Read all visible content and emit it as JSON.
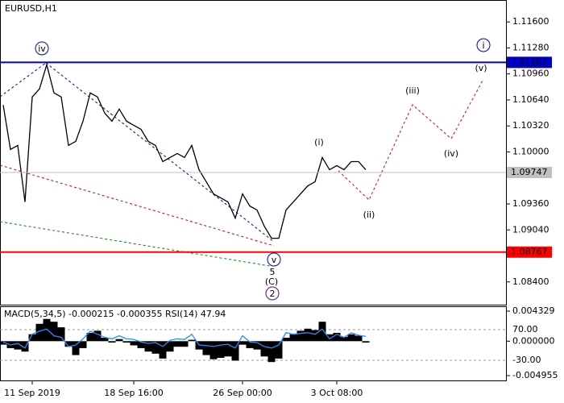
{
  "chart_data": {
    "type": "line",
    "title": "EURUSD,H1",
    "categories": [
      null,
      null,
      null,
      null,
      "11 Sep 2019",
      null,
      null,
      null,
      null,
      null,
      null,
      null,
      null,
      null,
      null,
      null,
      null,
      null,
      "18 Sep 16:00",
      null,
      null,
      null,
      null,
      null,
      null,
      null,
      null,
      null,
      null,
      null,
      null,
      null,
      null,
      "26 Sep 00:00",
      null,
      null,
      null,
      null,
      null,
      null,
      null,
      null,
      null,
      null,
      null,
      null,
      "3 Oct 08:00",
      null,
      null,
      null,
      null,
      null,
      null,
      null,
      null,
      null,
      null,
      null,
      null,
      null,
      null,
      null,
      null,
      null,
      null,
      null,
      null,
      null,
      null,
      null
    ],
    "series": [
      {
        "color": "#000000",
        "values": [
          1.10576,
          1.1003,
          1.1008,
          1.09384,
          1.10676,
          1.10775,
          1.11073,
          1.10726,
          1.10676,
          1.1008,
          1.10129,
          1.10378,
          1.10726,
          1.10676,
          1.10477,
          1.10378,
          1.10527,
          1.10378,
          1.10328,
          1.10278,
          1.10129,
          1.1008,
          1.09881,
          1.09931,
          1.0998,
          1.09931,
          1.1008,
          1.09781,
          1.09632,
          1.09483,
          1.09434,
          1.09384,
          1.09185,
          1.09483,
          1.09334,
          1.09285,
          1.09086,
          1.08937,
          1.08937,
          1.09285,
          1.09384,
          1.09483,
          1.09583,
          1.09632,
          1.09931,
          1.09781,
          1.09831,
          1.09781,
          1.09881,
          1.09881,
          1.09781,
          null,
          null,
          null,
          null,
          null,
          null,
          null,
          null,
          null,
          null,
          null,
          null,
          null,
          null,
          null,
          null,
          null,
          null,
          null
        ]
      }
    ],
    "ylim": [
      1.0812,
      1.1182
    ],
    "yticks": [
      {
        "value": 1.116,
        "label": "1.11600"
      },
      {
        "value": 1.1128,
        "label": "1.11280"
      },
      {
        "value": 1.1096,
        "label": "1.10960"
      },
      {
        "value": 1.1064,
        "label": "1.10640"
      },
      {
        "value": 1.1032,
        "label": "1.10320"
      },
      {
        "value": 1.1,
        "label": "1.10000"
      },
      {
        "value": 1.0936,
        "label": "1.09360"
      },
      {
        "value": 1.0904,
        "label": "1.09040"
      },
      {
        "value": 1.084,
        "label": "1.08400"
      }
    ],
    "levels": [
      {
        "value": 1.11102,
        "color": "#0000cc"
      },
      {
        "value": 1.09747,
        "color": "#c0c0c0"
      },
      {
        "value": 1.08767,
        "color": "#ff0000"
      }
    ],
    "annotations": [
      {
        "text": "iv",
        "color": "#0000cc",
        "circled": true
      },
      {
        "text": "i",
        "color": "#0000cc",
        "circled": true
      },
      {
        "text": "(i)",
        "color": "#dd0000",
        "circled": false
      },
      {
        "text": "(ii)",
        "color": "#dd0000",
        "circled": false
      },
      {
        "text": "(iii)",
        "color": "#dd0000",
        "circled": false
      },
      {
        "text": "(iv)",
        "color": "#dd0000",
        "circled": false
      },
      {
        "text": "(v)",
        "color": "#dd0000",
        "circled": false
      },
      {
        "text": "v",
        "color": "#0000cc",
        "circled": true
      },
      {
        "text": "5",
        "color": "#dd0000",
        "circled": false
      },
      {
        "text": "(C)",
        "color": "#008800",
        "circled": false
      },
      {
        "text": "2",
        "color": "#660099",
        "circled": true
      }
    ],
    "indicator": {
      "title": "MACD(5,34,5) -0.000215 -0.000355 RSI(14) 47.94",
      "ylim": [
        -0.004955,
        0.004329
      ],
      "yticks": [
        {
          "value": 0.004329,
          "label": "0.004329"
        },
        {
          "value": 0,
          "label": "0.000000"
        },
        {
          "value": -0.004955,
          "label": "-0.004955"
        }
      ],
      "y2lim": [
        -80,
        130.5
      ],
      "y2ticks": [
        {
          "value": 70,
          "label": "70.00"
        },
        {
          "value": -30,
          "label": "-30.00"
        }
      ],
      "series": [
        {
          "type": "bar",
          "color": "#000000",
          "values": [
            -0.0005,
            -0.001,
            -0.0012,
            -0.0015,
            0.001,
            0.0025,
            0.0032,
            0.0028,
            0.002,
            -0.0008,
            -0.002,
            -0.001,
            0.0012,
            0.0015,
            0.0005,
            -0.0002,
            0.0003,
            -0.0002,
            -0.0006,
            -0.001,
            -0.0015,
            -0.0018,
            -0.0025,
            -0.0015,
            -0.0008,
            -0.0008,
            0.0002,
            -0.0012,
            -0.002,
            -0.0026,
            -0.0024,
            -0.0022,
            -0.0028,
            -0.0005,
            -0.001,
            -0.0012,
            -0.0022,
            -0.003,
            -0.0025,
            0.0005,
            0.001,
            0.0015,
            0.0018,
            0.0016,
            0.0028,
            0.001,
            0.0012,
            0.0006,
            0.001,
            0.0008,
            -0.0002,
            null,
            null,
            null,
            null,
            null,
            null,
            null,
            null,
            null,
            null,
            null,
            null,
            null,
            null,
            null,
            null,
            null,
            null,
            null
          ]
        },
        {
          "type": "line",
          "axis": "y2",
          "color": "#1e90ff",
          "values": [
            30,
            20,
            25,
            10,
            55,
            65,
            72,
            50,
            45,
            15,
            20,
            40,
            65,
            55,
            45,
            40,
            50,
            40,
            38,
            30,
            25,
            28,
            15,
            35,
            40,
            38,
            55,
            20,
            18,
            15,
            20,
            22,
            10,
            50,
            30,
            28,
            15,
            10,
            20,
            60,
            55,
            58,
            60,
            55,
            72,
            40,
            55,
            45,
            60,
            52,
            47.94,
            null,
            null,
            null,
            null,
            null,
            null,
            null,
            null,
            null,
            null,
            null,
            null,
            null,
            null,
            null,
            null,
            null,
            null,
            null
          ]
        }
      ]
    }
  }
}
